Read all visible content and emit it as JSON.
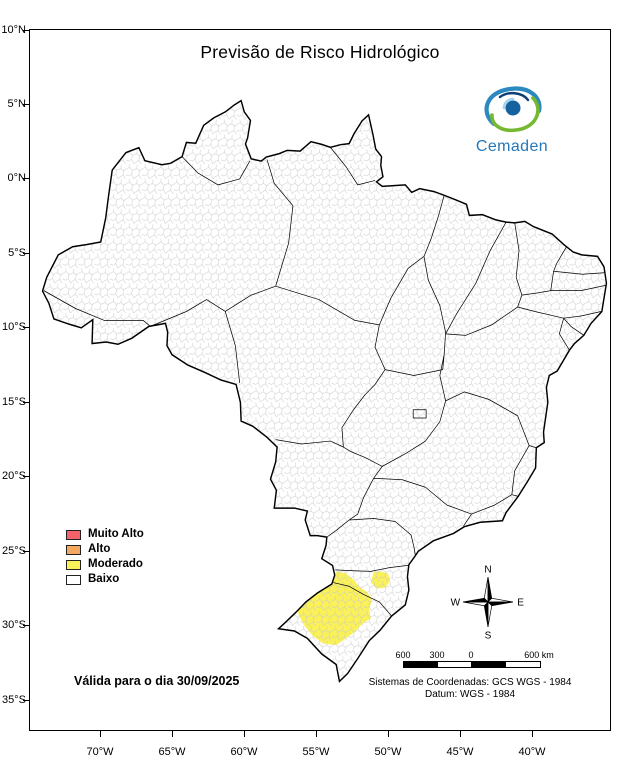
{
  "title": "Previsão de Risco Hidrológico",
  "brand": {
    "name": "Cemaden"
  },
  "legend": {
    "items": [
      {
        "label": "Muito Alto",
        "color": "#f4626b"
      },
      {
        "label": "Alto",
        "color": "#f5a85f"
      },
      {
        "label": "Moderado",
        "color": "#faf158"
      },
      {
        "label": "Baixo",
        "color": "#ffffff"
      }
    ]
  },
  "validity_note": "Válida para o dia 30/09/2025",
  "axes": {
    "lat": [
      "10°N",
      "5°N",
      "0°N",
      "5°S",
      "10°S",
      "15°S",
      "20°S",
      "25°S",
      "30°S",
      "35°S"
    ],
    "lon": [
      "70°W",
      "65°W",
      "60°W",
      "55°W",
      "50°W",
      "45°W",
      "40°W"
    ]
  },
  "compass": {
    "n": "N",
    "e": "E",
    "s": "S",
    "w": "W"
  },
  "scalebar": {
    "labels": [
      "600",
      "300",
      "0"
    ],
    "end_label": "600 km"
  },
  "footer": {
    "line1": "Sistemas de Coordenadas: GCS WGS - 1984",
    "line2": "Datum: WGS - 1984"
  },
  "map": {
    "moderado_fill": "#faf158"
  }
}
